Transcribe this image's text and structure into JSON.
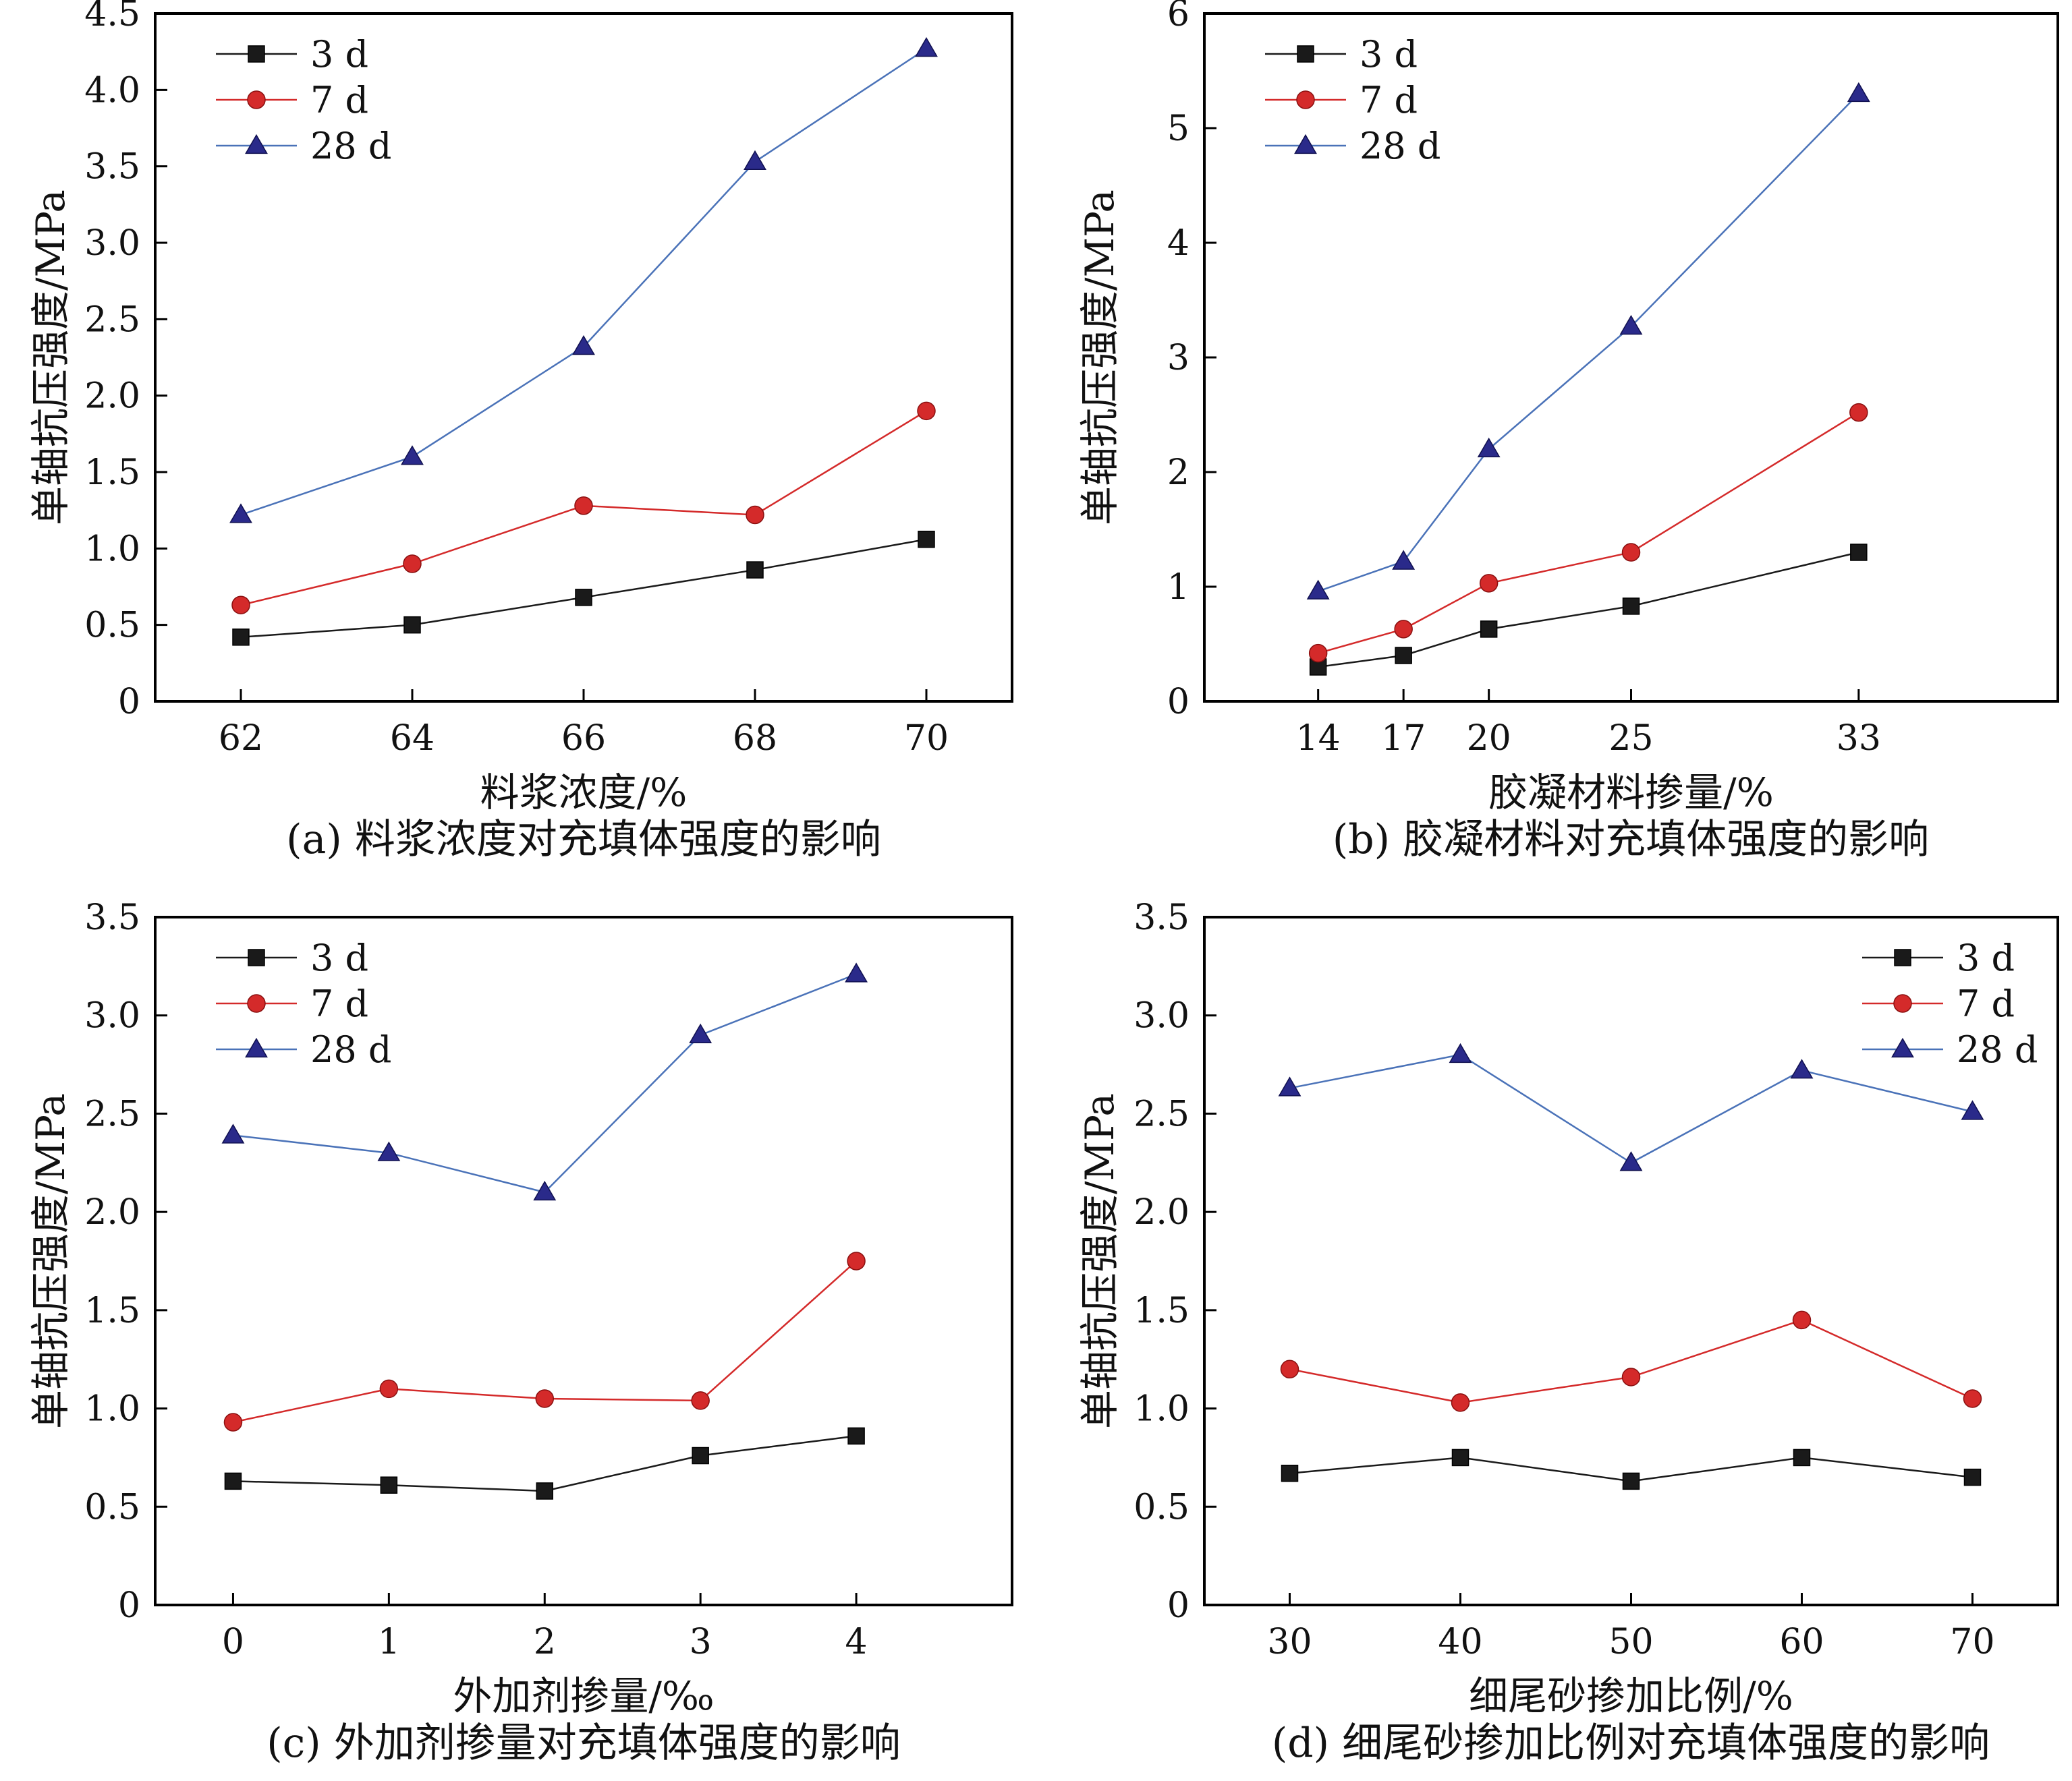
{
  "figure": {
    "series_colors": [
      "#1a1a1a",
      "#d42a2a",
      "#4a72b8"
    ],
    "marker_fill_colors": [
      "#1a1a1a",
      "#d42a2a",
      "#2a2a8a"
    ]
  },
  "chart_data": [
    {
      "id": "a",
      "type": "line",
      "caption": "(a) 料浆浓度对充填体强度的影响",
      "xlabel": "料浆浓度/%",
      "ylabel": "单轴抗压强度/MPa",
      "x": [
        62,
        64,
        66,
        68,
        70
      ],
      "xlim": [
        61,
        71
      ],
      "xticks": [
        62,
        64,
        66,
        68,
        70
      ],
      "xtick_labels": [
        "62",
        "64",
        "66",
        "68",
        "70"
      ],
      "ylim": [
        0,
        4.5
      ],
      "yticks": [
        0,
        0.5,
        1.0,
        1.5,
        2.0,
        2.5,
        3.0,
        3.5,
        4.0,
        4.5
      ],
      "ytick_labels": [
        "0",
        "0.5",
        "1.0",
        "1.5",
        "2.0",
        "2.5",
        "3.0",
        "3.5",
        "4.0",
        "4.5"
      ],
      "legend_position": "top-left",
      "series": [
        {
          "name": "3 d",
          "marker": "square",
          "values": [
            0.42,
            0.5,
            0.68,
            0.86,
            1.06
          ]
        },
        {
          "name": "7 d",
          "marker": "circle",
          "values": [
            0.63,
            0.9,
            1.28,
            1.22,
            1.9
          ]
        },
        {
          "name": "28 d",
          "marker": "triangle",
          "values": [
            1.22,
            1.6,
            2.32,
            3.53,
            4.27
          ]
        }
      ]
    },
    {
      "id": "b",
      "type": "line",
      "caption": "(b) 胶凝材料对充填体强度的影响",
      "xlabel": "胶凝材料掺量/%",
      "ylabel": "单轴抗压强度/MPa",
      "x": [
        14,
        17,
        20,
        25,
        33
      ],
      "xlim": [
        10,
        40
      ],
      "xticks": [
        14,
        17,
        20,
        25,
        33
      ],
      "xtick_labels": [
        "14",
        "17",
        "20",
        "25",
        "33"
      ],
      "ylim": [
        0,
        6
      ],
      "yticks": [
        0,
        1,
        2,
        3,
        4,
        5,
        6
      ],
      "ytick_labels": [
        "0",
        "1",
        "2",
        "3",
        "4",
        "5",
        "6"
      ],
      "legend_position": "top-left",
      "series": [
        {
          "name": "3 d",
          "marker": "square",
          "values": [
            0.3,
            0.4,
            0.63,
            0.83,
            1.3
          ]
        },
        {
          "name": "7 d",
          "marker": "circle",
          "values": [
            0.42,
            0.63,
            1.03,
            1.3,
            2.52
          ]
        },
        {
          "name": "28 d",
          "marker": "triangle",
          "values": [
            0.96,
            1.22,
            2.2,
            3.27,
            5.3
          ]
        }
      ]
    },
    {
      "id": "c",
      "type": "line",
      "caption": "(c) 外加剂掺量对充填体强度的影响",
      "xlabel": "外加剂掺量/‰",
      "ylabel": "单轴抗压强度/MPa",
      "x": [
        0,
        1,
        2,
        3,
        4
      ],
      "xlim": [
        -0.5,
        5
      ],
      "xticks": [
        0,
        1,
        2,
        3,
        4
      ],
      "xtick_labels": [
        "0",
        "1",
        "2",
        "3",
        "4"
      ],
      "ylim": [
        0,
        3.5
      ],
      "yticks": [
        0,
        0.5,
        1.0,
        1.5,
        2.0,
        2.5,
        3.0,
        3.5
      ],
      "ytick_labels": [
        "0",
        "0.5",
        "1.0",
        "1.5",
        "2.0",
        "2.5",
        "3.0",
        "3.5"
      ],
      "legend_position": "top-left",
      "series": [
        {
          "name": "3 d",
          "marker": "square",
          "values": [
            0.63,
            0.61,
            0.58,
            0.76,
            0.86
          ]
        },
        {
          "name": "7 d",
          "marker": "circle",
          "values": [
            0.93,
            1.1,
            1.05,
            1.04,
            1.75
          ]
        },
        {
          "name": "28 d",
          "marker": "triangle",
          "values": [
            2.39,
            2.3,
            2.1,
            2.9,
            3.21
          ]
        }
      ]
    },
    {
      "id": "d",
      "type": "line",
      "caption": "(d) 细尾砂掺加比例对充填体强度的影响",
      "xlabel": "细尾砂掺加比例/%",
      "ylabel": "单轴抗压强度/MPa",
      "x": [
        30,
        40,
        50,
        60,
        70
      ],
      "xlim": [
        25,
        75
      ],
      "xticks": [
        30,
        40,
        50,
        60,
        70
      ],
      "xtick_labels": [
        "30",
        "40",
        "50",
        "60",
        "70"
      ],
      "ylim": [
        0,
        3.5
      ],
      "yticks": [
        0,
        0.5,
        1.0,
        1.5,
        2.0,
        2.5,
        3.0,
        3.5
      ],
      "ytick_labels": [
        "0",
        "0.5",
        "1.0",
        "1.5",
        "2.0",
        "2.5",
        "3.0",
        "3.5"
      ],
      "legend_position": "top-right",
      "series": [
        {
          "name": "3 d",
          "marker": "square",
          "values": [
            0.67,
            0.75,
            0.63,
            0.75,
            0.65
          ]
        },
        {
          "name": "7 d",
          "marker": "circle",
          "values": [
            1.2,
            1.03,
            1.16,
            1.45,
            1.05
          ]
        },
        {
          "name": "28 d",
          "marker": "triangle",
          "values": [
            2.63,
            2.8,
            2.25,
            2.72,
            2.51
          ]
        }
      ]
    }
  ]
}
